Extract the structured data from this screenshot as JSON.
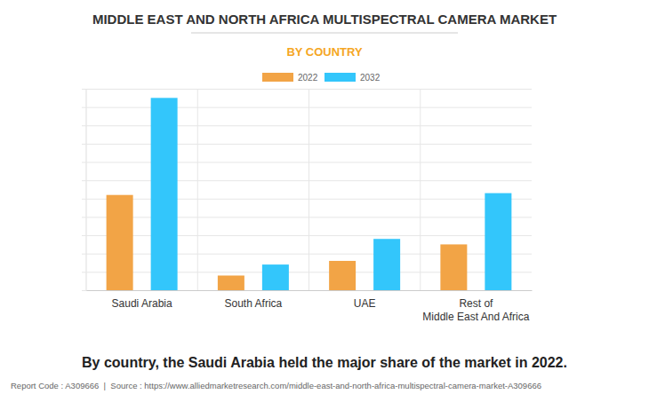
{
  "chart_data": {
    "type": "bar",
    "title": "MIDDLE EAST AND NORTH AFRICA MULTISPECTRAL CAMERA MARKET",
    "subtitle": "BY COUNTRY",
    "categories": [
      "Saudi Arabia",
      "South Africa",
      "UAE",
      "Rest of\nMiddle East And Africa"
    ],
    "series": [
      {
        "name": "2022",
        "color": "#f2a446",
        "values": [
          5.2,
          0.8,
          1.6,
          2.5
        ]
      },
      {
        "name": "2032",
        "color": "#33c6fb",
        "values": [
          10.5,
          1.4,
          2.8,
          5.3
        ]
      }
    ],
    "ylim": [
      0,
      11
    ],
    "yticks": [
      0,
      1,
      2,
      3,
      4,
      5,
      6,
      7,
      8,
      9,
      10,
      11
    ],
    "grid": true,
    "tick_labels": "x",
    "legend": "top",
    "caption": "By country, the Saudi Arabia held the major share of the market in 2022.",
    "footer": "Report Code : A309666  |  Source : https://www.alliedmarketresearch.com/middle-east-and-north-africa-multispectral-camera-market-A309666"
  }
}
